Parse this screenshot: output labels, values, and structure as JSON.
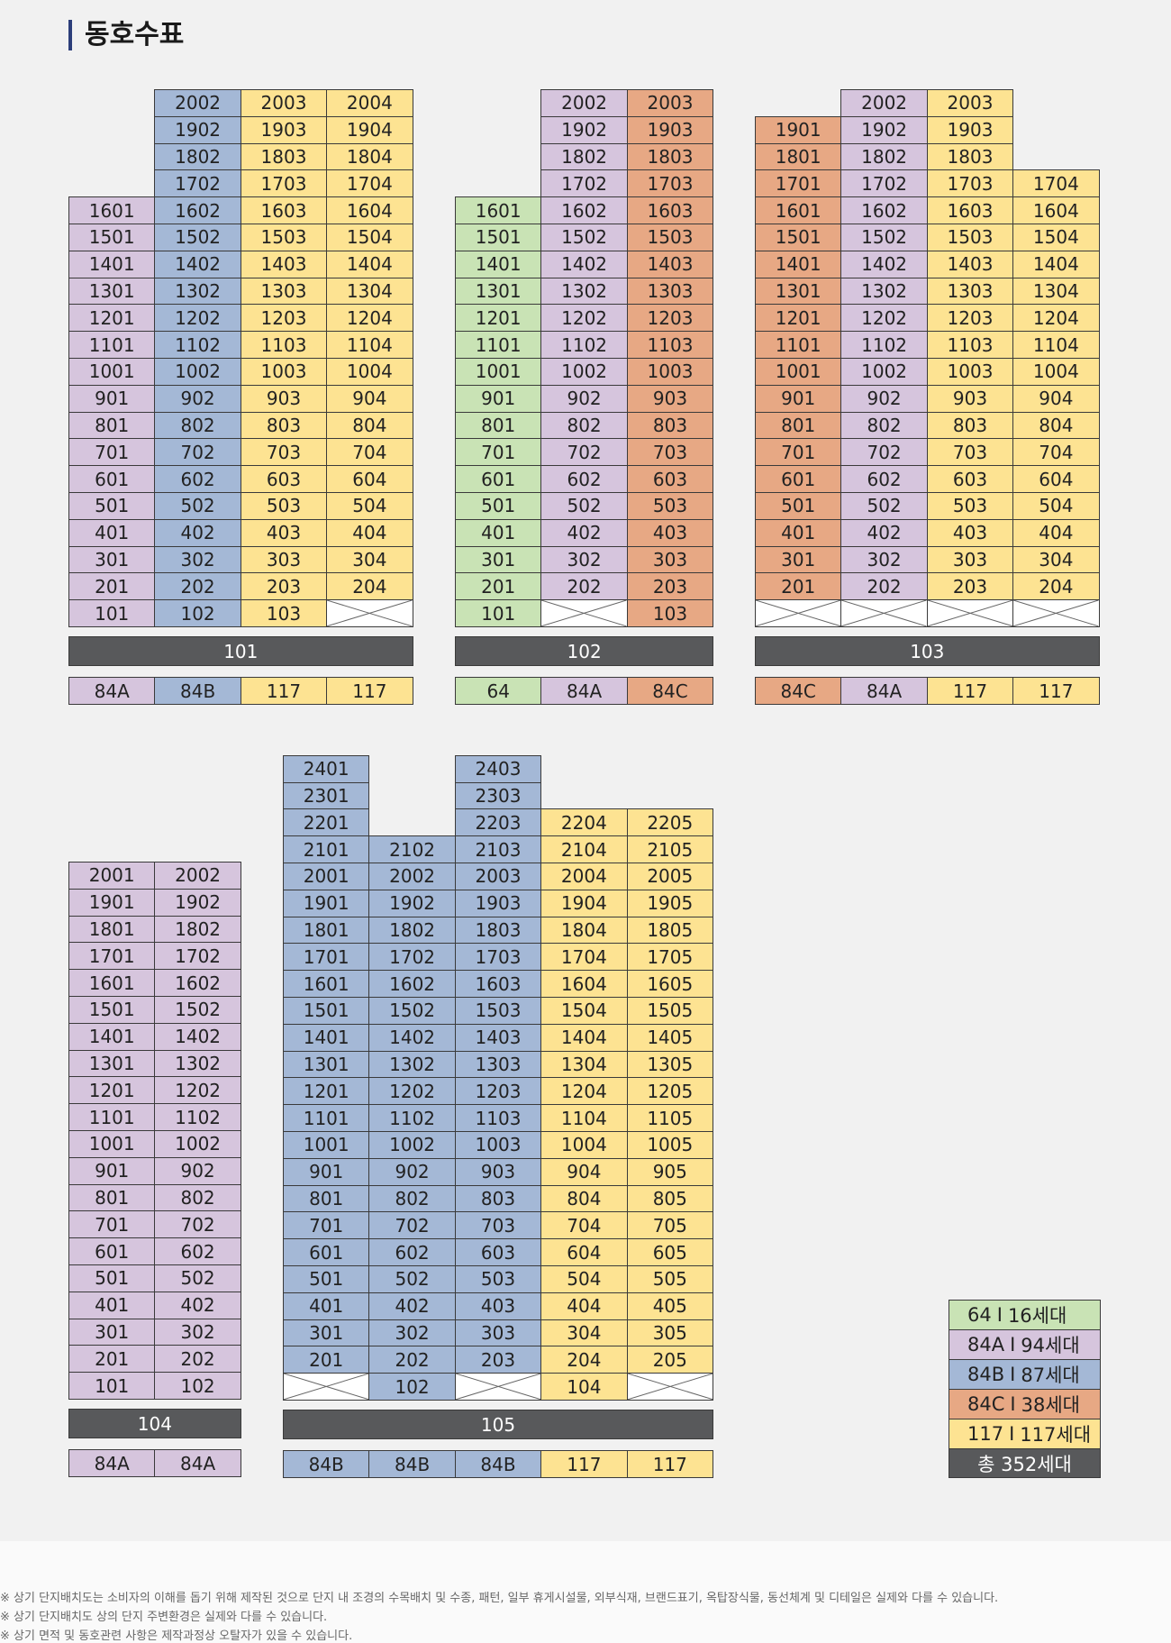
{
  "page": {
    "title": "동호수표",
    "background": "#f1f1f1"
  },
  "colors": {
    "64": "#c9e3b5",
    "84A": "#d6c5dd",
    "84B": "#a4b8d6",
    "84C": "#e7a884",
    "117": "#fde392",
    "label_bar": "#58595b"
  },
  "buildings": [
    {
      "name": "101",
      "types": [
        "84A",
        "84B",
        "117",
        "117"
      ],
      "floors": 20,
      "columns": [
        {
          "start": 1,
          "end": 16,
          "voids": []
        },
        {
          "start": 1,
          "end": 20,
          "voids": []
        },
        {
          "start": 1,
          "end": 20,
          "voids": []
        },
        {
          "start": 1,
          "end": 20,
          "voids": [
            1
          ]
        }
      ]
    },
    {
      "name": "102",
      "types": [
        "64",
        "84A",
        "84C"
      ],
      "floors": 20,
      "columns": [
        {
          "start": 1,
          "end": 16,
          "voids": []
        },
        {
          "start": 1,
          "end": 20,
          "voids": [
            1
          ]
        },
        {
          "start": 1,
          "end": 20,
          "voids": []
        }
      ]
    },
    {
      "name": "103",
      "types": [
        "84C",
        "84A",
        "117",
        "117"
      ],
      "floors": 20,
      "columns": [
        {
          "start": 1,
          "end": 19,
          "voids": [
            1
          ]
        },
        {
          "start": 1,
          "end": 20,
          "voids": [
            1
          ]
        },
        {
          "start": 1,
          "end": 20,
          "voids": [
            1
          ]
        },
        {
          "start": 1,
          "end": 17,
          "voids": [
            1
          ]
        }
      ]
    },
    {
      "name": "104",
      "types": [
        "84A",
        "84A"
      ],
      "floors": 20,
      "columns": [
        {
          "start": 1,
          "end": 20,
          "voids": []
        },
        {
          "start": 1,
          "end": 20,
          "voids": []
        }
      ]
    },
    {
      "name": "105",
      "types": [
        "84B",
        "84B",
        "84B",
        "117",
        "117"
      ],
      "floors": 24,
      "columns": [
        {
          "start": 1,
          "end": 24,
          "voids": [
            1
          ]
        },
        {
          "start": 1,
          "end": 21,
          "voids": []
        },
        {
          "start": 1,
          "end": 24,
          "voids": [
            1
          ]
        },
        {
          "start": 1,
          "end": 22,
          "voids": []
        },
        {
          "start": 1,
          "end": 22,
          "voids": [
            1
          ]
        }
      ]
    }
  ],
  "legend": [
    {
      "type": "64",
      "label": "64",
      "sep": "I",
      "count": "16세대"
    },
    {
      "type": "84A",
      "label": "84A",
      "sep": "I",
      "count": "94세대"
    },
    {
      "type": "84B",
      "label": "84B",
      "sep": "I",
      "count": "87세대"
    },
    {
      "type": "84C",
      "label": "84C",
      "sep": "I",
      "count": "38세대"
    },
    {
      "type": "117",
      "label": "117",
      "sep": "I",
      "count": "117세대"
    }
  ],
  "legend_total": "총 352세대",
  "footer_notes": [
    "※ 상기 단지배치도는 소비자의 이해를 돕기 위해 제작된 것으로 단지 내 조경의 수목배치 및 수종, 패턴, 일부 휴게시설물, 외부식재, 브랜드표기, 옥탑장식물, 동선체계 및 디테일은 실제와 다를 수 있습니다.",
    "※ 상기 단지배치도 상의 단지 주변환경은 실제와 다를 수 있습니다.",
    "※ 상기 면적 및 동호관련 사항은 제작과정상 오탈자가 있을 수 있습니다."
  ]
}
